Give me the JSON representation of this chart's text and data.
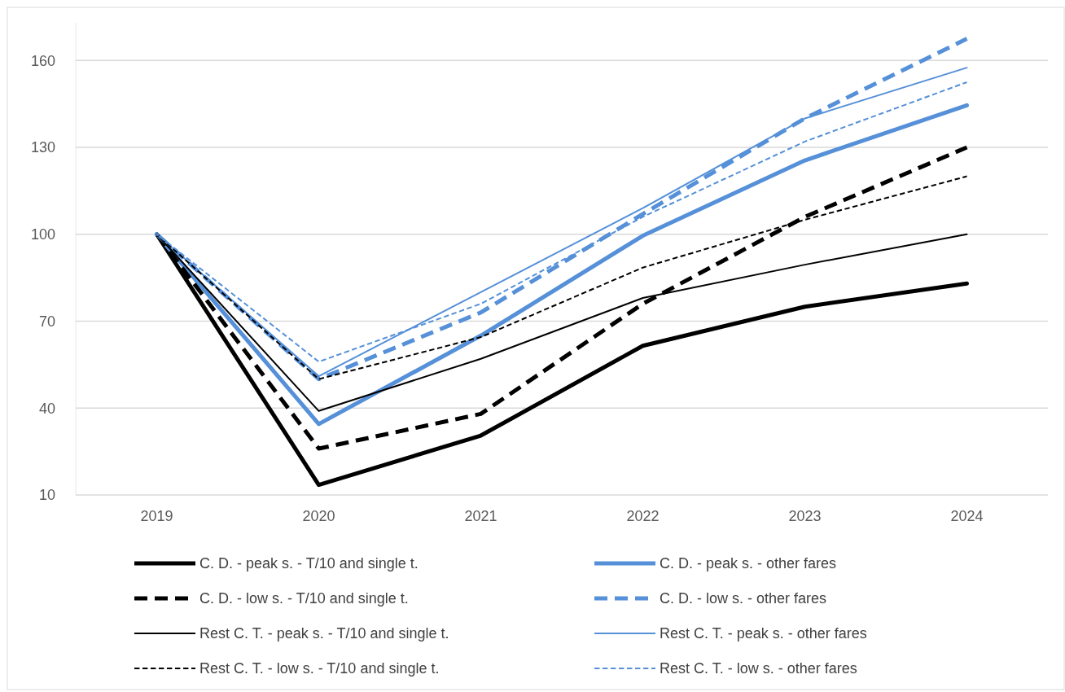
{
  "chart_data": {
    "type": "line",
    "categories": [
      "2019",
      "2020",
      "2021",
      "2022",
      "2023",
      "2024"
    ],
    "ylim": [
      10,
      173
    ],
    "yticks": [
      10,
      40,
      70,
      100,
      130,
      160
    ],
    "grid": "y",
    "legend": "bottom",
    "series": [
      {
        "name": "C. D. - peak s. - T/10 and single t.",
        "color": "#000000",
        "line_style": "solid",
        "values": [
          100,
          13.5,
          30.5,
          61.5,
          75,
          83
        ]
      },
      {
        "name": "C. D. - peak s. - other fares",
        "color": "#5590d8",
        "line_style": "solid",
        "values": [
          100,
          34.5,
          65,
          99.5,
          125.5,
          144.5
        ]
      },
      {
        "name": "C. D. - low s. - T/10 and single t.",
        "color": "#000000",
        "line_style": "dashed",
        "values": [
          100,
          26,
          38,
          76,
          106,
          130
        ]
      },
      {
        "name": "C. D. - low s. - other fares",
        "color": "#5590d8",
        "line_style": "dashed",
        "values": [
          100,
          50,
          73,
          107,
          140,
          167.5
        ]
      },
      {
        "name": "Rest C. T. - peak s. - T/10 and single t.",
        "color": "#000000",
        "line_style": "solid",
        "values": [
          100,
          39,
          57,
          78,
          89.5,
          100
        ]
      },
      {
        "name": "Rest C. T. - peak s. - other fares",
        "color": "#5590d8",
        "line_style": "solid",
        "values": [
          100,
          51,
          80,
          109,
          140,
          157.5
        ]
      },
      {
        "name": "Rest C. T. - low s. - T/10 and single t.",
        "color": "#000000",
        "line_style": "dashed",
        "values": [
          100,
          50,
          64.5,
          88.5,
          105,
          120
        ]
      },
      {
        "name": "Rest C. T. - low s. - other fares",
        "color": "#5590d8",
        "line_style": "dashed",
        "values": [
          100,
          56,
          76,
          106,
          132,
          152.5
        ]
      }
    ]
  }
}
